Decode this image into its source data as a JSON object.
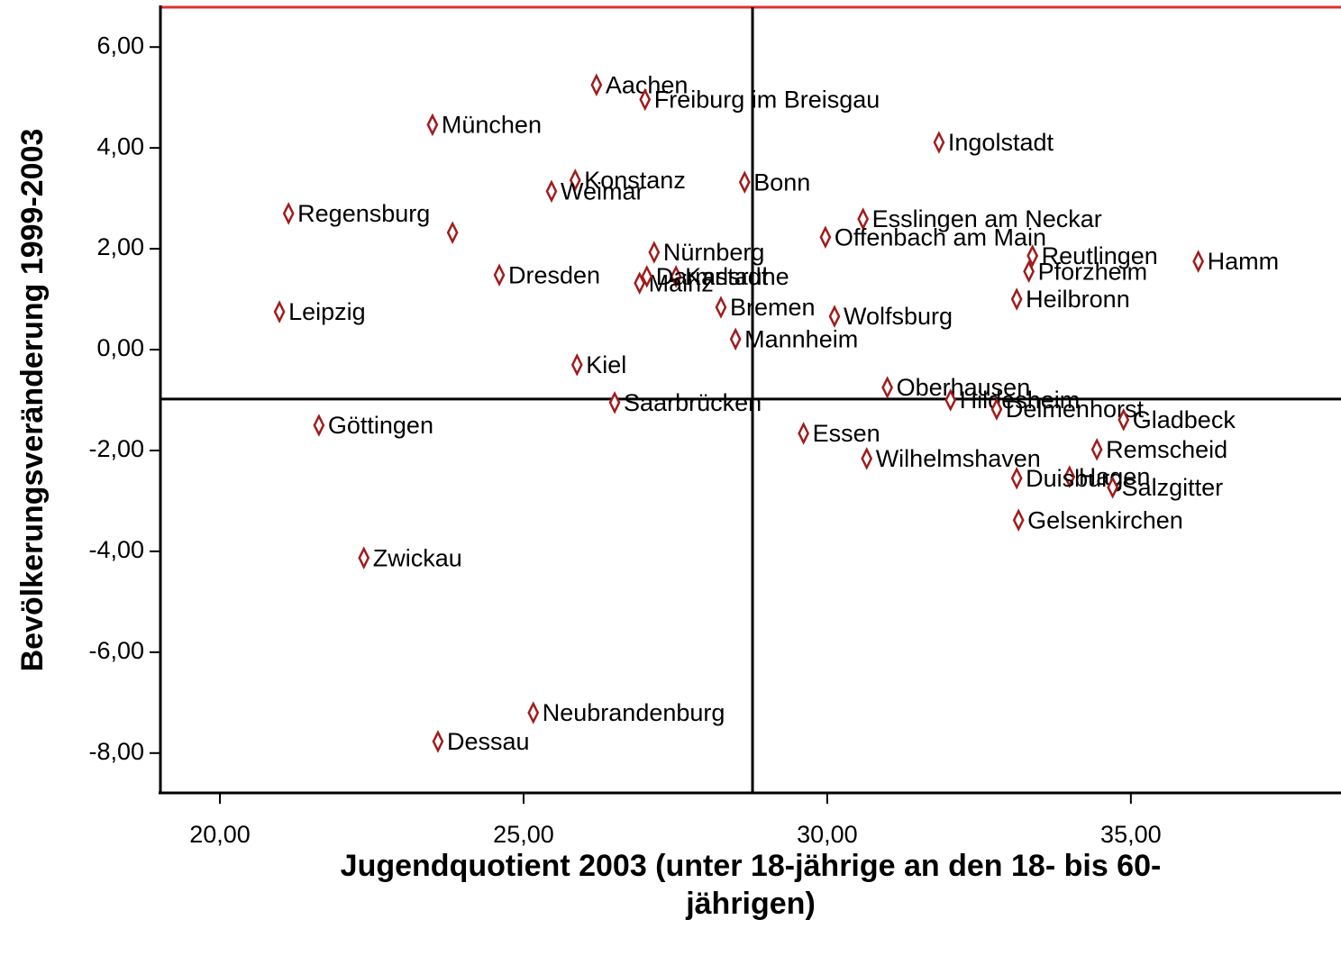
{
  "chart_data": {
    "type": "scatter",
    "x_label": "Jugendquotient 2003 (unter 18-jährige an den 18- bis 60-jährigen)",
    "y_label": "Bevölkerungsveränderung 1999-2003",
    "color": "#a01c1c",
    "labels": [
      "Aachen",
      "Freiburg im Breisgau",
      "München",
      "Ingolstadt",
      "Konstanz",
      "Weimar",
      "Bonn",
      "Regensburg",
      null,
      "Esslingen am Neckar",
      "Offenbach am Main",
      "Nürnberg",
      "Karlsruhe",
      "Hamm",
      "Pforzheim",
      "Reutlingen",
      "Heilbronn",
      "Dresden",
      "Mainz",
      "Darmstadt",
      "Leipzig",
      "Bremen",
      "Wolfsburg",
      "Mannheim",
      "Kiel",
      "Oberhausen",
      "Hildesheim",
      "Delmenhorst",
      "Saarbrücken",
      "Göttingen",
      "Gladbeck",
      "Essen",
      "Remscheid",
      "Wilhelmshaven",
      "Hagen",
      "Duisburg",
      "Salzgitter",
      "Gelsenkirchen",
      "Zwickau",
      "Neubrandenburg",
      "Dessau"
    ],
    "x": [
      26.2,
      27.0,
      23.5,
      31.84,
      25.85,
      25.46,
      28.64,
      21.13,
      23.83,
      30.59,
      29.97,
      27.15,
      27.51,
      36.11,
      33.32,
      33.38,
      33.12,
      24.6,
      26.91,
      27.03,
      20.98,
      28.25,
      30.12,
      28.49,
      25.88,
      30.99,
      32.03,
      32.79,
      26.5,
      21.63,
      34.88,
      29.61,
      34.44,
      30.65,
      33.99,
      33.12,
      34.7,
      33.15,
      22.37,
      25.16,
      23.59
    ],
    "y": [
      5.25,
      4.96,
      4.46,
      4.11,
      3.36,
      3.14,
      3.32,
      2.7,
      2.32,
      2.59,
      2.23,
      1.93,
      1.45,
      1.75,
      1.55,
      1.86,
      1.0,
      1.48,
      1.32,
      1.45,
      0.75,
      0.84,
      0.66,
      0.21,
      -0.3,
      -0.75,
      -1.0,
      -1.18,
      -1.05,
      -1.5,
      -1.39,
      -1.66,
      -1.98,
      -2.16,
      -2.52,
      -2.55,
      -2.73,
      -3.38,
      -4.13,
      -7.2,
      -7.77
    ],
    "xlim": [
      19.02,
      38.46
    ],
    "ylim": [
      -8.79,
      6.79
    ],
    "xticks": [
      {
        "value": 20,
        "label": "20,00"
      },
      {
        "value": 25,
        "label": "25,00"
      },
      {
        "value": 30,
        "label": "30,00"
      },
      {
        "value": 35,
        "label": "35,00"
      }
    ],
    "yticks": [
      {
        "value": -8,
        "label": "-8,00"
      },
      {
        "value": -6,
        "label": "-6,00"
      },
      {
        "value": -4,
        "label": "-4,00"
      },
      {
        "value": -2,
        "label": "-2,00"
      },
      {
        "value": 0,
        "label": "0,00"
      },
      {
        "value": 2,
        "label": "2,00"
      },
      {
        "value": 4,
        "label": "4,00"
      },
      {
        "value": 6,
        "label": "6,00"
      }
    ],
    "reference_lines": {
      "x": 28.77,
      "y": -0.98
    }
  }
}
